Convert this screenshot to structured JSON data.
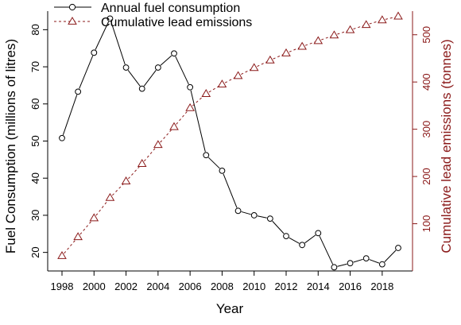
{
  "chart_data": {
    "type": "line",
    "title": "",
    "xlabel": "Year",
    "ylabel_left": "Fuel Consumption (millions of litres)",
    "ylabel_right": "Cumulative lead emissions (tonnes)",
    "x": [
      1998,
      1999,
      2000,
      2001,
      2002,
      2003,
      2004,
      2005,
      2006,
      2007,
      2008,
      2009,
      2010,
      2011,
      2012,
      2013,
      2014,
      2015,
      2016,
      2017,
      2018,
      2019
    ],
    "xticks": [
      1998,
      2000,
      2002,
      2004,
      2006,
      2008,
      2010,
      2012,
      2014,
      2016,
      2018
    ],
    "xlim": [
      1998,
      2019
    ],
    "left_axis": {
      "ylim": [
        15,
        85
      ],
      "ticks": [
        20,
        30,
        40,
        50,
        60,
        70,
        80
      ]
    },
    "right_axis": {
      "ylim": [
        0,
        550
      ],
      "ticks": [
        100,
        200,
        300,
        400,
        500
      ]
    },
    "series": [
      {
        "name": "Annual fuel consumption",
        "axis": "left",
        "marker": "circle",
        "line": "solid",
        "color": "#000000",
        "values": [
          50.8,
          63.3,
          73.8,
          83.0,
          69.8,
          64.1,
          69.8,
          73.6,
          64.5,
          46.2,
          42.0,
          31.2,
          30.0,
          29.1,
          24.4,
          22.0,
          25.2,
          16.0,
          17.1,
          18.4,
          16.8,
          21.2
        ]
      },
      {
        "name": "Cumulative lead emissions",
        "axis": "right",
        "marker": "triangle",
        "line": "dashed",
        "color": "#8B1A1A",
        "values": [
          32,
          72,
          112,
          155,
          190,
          227,
          267,
          305,
          345,
          375,
          395,
          413,
          430,
          446,
          461,
          475,
          487,
          499,
          510,
          521,
          531,
          539
        ]
      }
    ],
    "legend": {
      "position": "top-left",
      "items": [
        "Annual fuel consumption",
        "Cumulative lead emissions"
      ]
    },
    "grid": false
  }
}
